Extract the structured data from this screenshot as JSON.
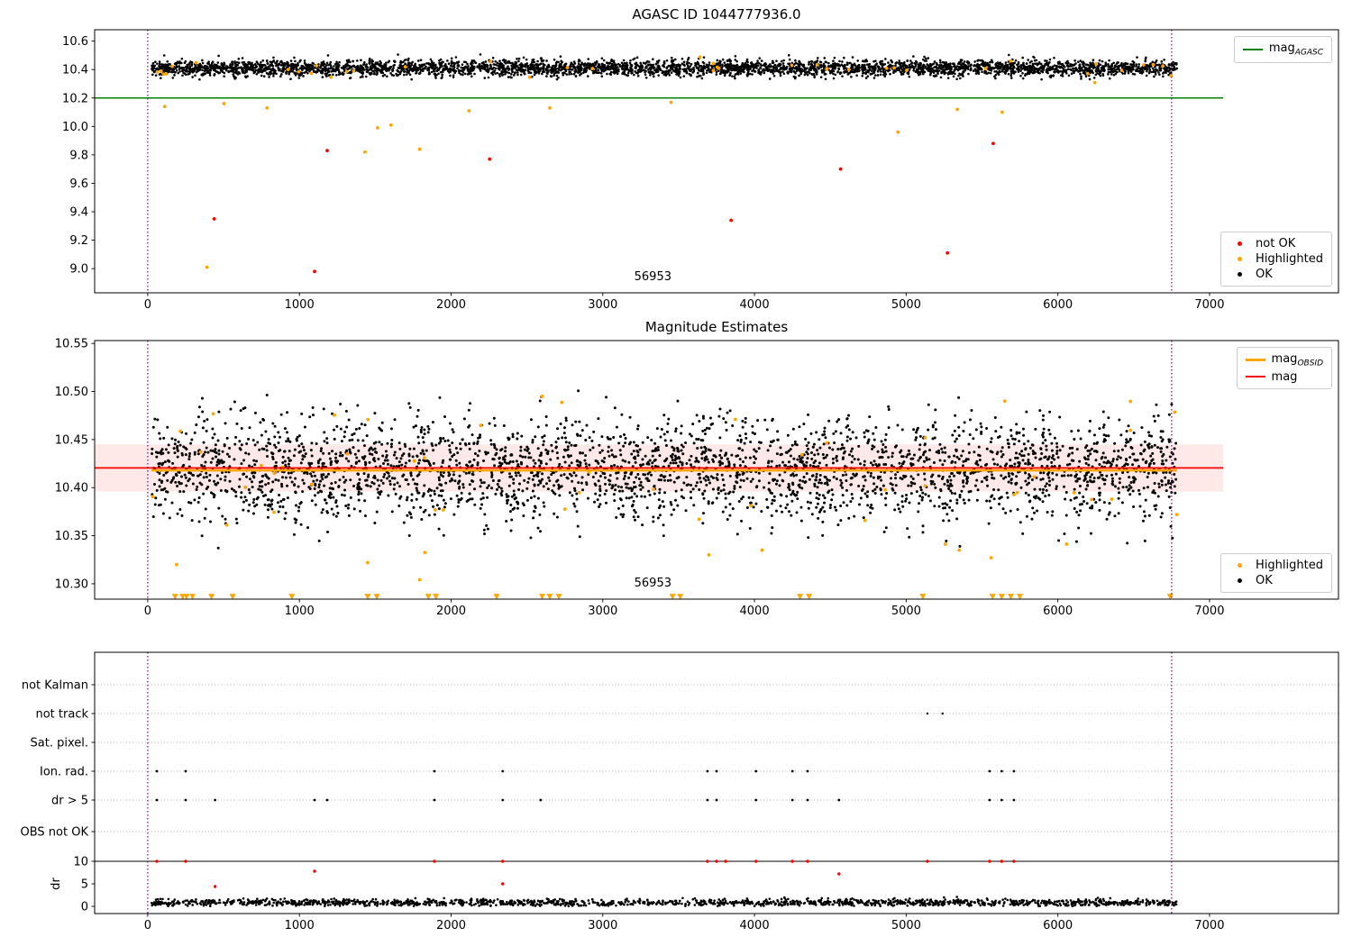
{
  "chart_data": [
    {
      "type": "scatter",
      "title": "AGASC ID 1044777936.0",
      "xlim": [
        -350,
        7850
      ],
      "ylim": [
        8.83,
        10.68
      ],
      "xticks": [
        0,
        1000,
        2000,
        3000,
        4000,
        5000,
        6000,
        7000
      ],
      "yticks": [
        9.0,
        9.2,
        9.4,
        9.6,
        9.8,
        10.0,
        10.2,
        10.4,
        10.6
      ],
      "ydecimals": 1,
      "vlines": [
        {
          "x": 0
        },
        {
          "x": 6750
        }
      ],
      "hlines": [
        {
          "y": 10.2,
          "color": "#008000",
          "x0": -350,
          "x1": 7090,
          "w": 1.6,
          "name": "mag_AGASC"
        }
      ],
      "series": [
        {
          "name": "OK",
          "color": "#000000",
          "marker": "dot",
          "size": 1.3,
          "random": {
            "seed": 101,
            "n": 4200,
            "x0": 25,
            "x1": 6785,
            "mean": 10.41,
            "std": 0.028,
            "min": 10.33,
            "max": 10.53
          }
        },
        {
          "name": "Highlighted",
          "color": "#ffa500",
          "marker": "dot",
          "size": 1.9,
          "random": {
            "seed": 7,
            "n": 40,
            "x0": 25,
            "x1": 6785,
            "mean": 10.41,
            "std": 0.05,
            "min": 10.28,
            "max": 10.52
          },
          "points": [
            [
              112,
              10.14
            ],
            [
              390,
              9.01
            ],
            [
              503,
              10.16
            ],
            [
              787,
              10.13
            ],
            [
              1432,
              9.82
            ],
            [
              1515,
              9.99
            ],
            [
              1604,
              10.01
            ],
            [
              1793,
              9.84
            ],
            [
              2118,
              10.11
            ],
            [
              2651,
              10.13
            ],
            [
              3450,
              10.17
            ],
            [
              4946,
              9.96
            ],
            [
              5337,
              10.12
            ],
            [
              5633,
              10.1
            ]
          ]
        },
        {
          "name": "not OK",
          "color": "#ff0000",
          "marker": "dot",
          "size": 1.9,
          "points": [
            [
              438,
              9.35
            ],
            [
              1100,
              8.98
            ],
            [
              1183,
              9.83
            ],
            [
              2254,
              9.77
            ],
            [
              3846,
              9.34
            ],
            [
              4568,
              9.7
            ],
            [
              5272,
              9.11
            ],
            [
              5574,
              9.88
            ]
          ]
        }
      ],
      "annotations": [
        {
          "text": "56953",
          "x": 3330
        }
      ],
      "legends": [
        {
          "pos": "top-right",
          "entries": [
            {
              "swatch": "line",
              "color": "#008000",
              "label": "mag",
              "sub": "AGASC"
            }
          ]
        },
        {
          "pos": "bottom-right",
          "entries": [
            {
              "swatch": "dot",
              "color": "#ff0000",
              "label": "not OK"
            },
            {
              "swatch": "dot",
              "color": "#ffa500",
              "label": "Highlighted"
            },
            {
              "swatch": "dot",
              "color": "#000000",
              "label": "OK"
            }
          ]
        }
      ]
    },
    {
      "type": "scatter",
      "title": "Magnitude Estimates",
      "xlim": [
        -350,
        7850
      ],
      "ylim": [
        10.284,
        10.553
      ],
      "xticks": [
        0,
        1000,
        2000,
        3000,
        4000,
        5000,
        6000,
        7000
      ],
      "yticks": [
        10.3,
        10.35,
        10.4,
        10.45,
        10.5,
        10.55
      ],
      "ydecimals": 2,
      "band": {
        "y0": 10.396,
        "y1": 10.445,
        "x0": -350,
        "x1": 7090,
        "color": "rgba(255,0,0,0.09)"
      },
      "vlines": [
        {
          "x": 0
        },
        {
          "x": 6750
        }
      ],
      "hlines": [
        {
          "y": 10.418,
          "color": "#ffa500",
          "x0": 25,
          "x1": 6785,
          "w": 2.6,
          "name": "mag_OBSID"
        },
        {
          "y": 10.4205,
          "color": "#ff0000",
          "x0": -350,
          "x1": 7090,
          "w": 1.8,
          "name": "mag"
        }
      ],
      "series": [
        {
          "name": "OK",
          "color": "#000000",
          "marker": "dot",
          "size": 1.5,
          "random": {
            "seed": 202,
            "n": 3200,
            "x0": 25,
            "x1": 6785,
            "mean": 10.419,
            "std": 0.027,
            "min": 10.328,
            "max": 10.503
          }
        },
        {
          "name": "Highlighted",
          "color": "#ffa500",
          "marker": "dot",
          "size": 1.9,
          "random": {
            "seed": 8,
            "n": 48,
            "x0": 25,
            "x1": 6785,
            "mean": 10.42,
            "std": 0.055,
            "min": 10.3,
            "max": 10.5
          },
          "points": [
            [
              190,
              10.32
            ],
            [
              1450,
              10.322
            ],
            [
              2600,
              10.495
            ],
            [
              3700,
              10.33
            ],
            [
              4050,
              10.335
            ],
            [
              5350,
              10.335
            ],
            [
              5650,
              10.49
            ]
          ]
        },
        {
          "name": "Highlighted clipped",
          "color": "#ffa500",
          "marker": "tri-down",
          "size": 3.5,
          "y": 10.2867,
          "xs": [
            180,
            230,
            255,
            295,
            420,
            560,
            950,
            1450,
            1510,
            1850,
            1900,
            2300,
            2600,
            2650,
            2710,
            3460,
            3510,
            4300,
            4360,
            5110,
            5570,
            5630,
            5690,
            5750,
            6740
          ]
        }
      ],
      "annotations": [
        {
          "text": "56953",
          "x": 3330
        }
      ],
      "legends": [
        {
          "pos": "top-right",
          "entries": [
            {
              "swatch": "line",
              "color": "#ffa500",
              "label": "mag",
              "sub": "OBSID",
              "thick": true
            },
            {
              "swatch": "line",
              "color": "#ff0000",
              "label": "mag"
            }
          ]
        },
        {
          "pos": "bottom-right",
          "entries": [
            {
              "swatch": "dot",
              "color": "#ffa500",
              "label": "Highlighted"
            },
            {
              "swatch": "dot",
              "color": "#000000",
              "label": "OK"
            }
          ]
        }
      ]
    },
    {
      "type": "scatter",
      "title": "",
      "xlim": [
        -350,
        7850
      ],
      "ylim": [
        -1.6,
        56.4
      ],
      "xticks": [
        0,
        1000,
        2000,
        3000,
        4000,
        5000,
        6000,
        7000
      ],
      "category_rows": [
        {
          "label": "not Kalman",
          "v": 49.2
        },
        {
          "label": "not track",
          "v": 42.8
        },
        {
          "label": "Sat. pixel.",
          "v": 36.4
        },
        {
          "label": "Ion. rad.",
          "v": 30.0
        },
        {
          "label": "dr > 5",
          "v": 23.6
        },
        {
          "label": "OBS not OK",
          "v": 16.6
        }
      ],
      "yticks_values": [
        {
          "v": 10,
          "label": "10"
        },
        {
          "v": 5,
          "label": "5"
        },
        {
          "v": 0,
          "label": "0"
        }
      ],
      "ylabel": "dr",
      "vlines": [
        {
          "x": 0
        },
        {
          "x": 6750
        }
      ],
      "hlines": [
        {
          "y": 10,
          "color": "#000000",
          "x0": -350,
          "x1": 7850,
          "w": 1,
          "under": true
        }
      ],
      "series": [
        {
          "name": "dr OK",
          "color": "#000000",
          "marker": "dot",
          "size": 1.3,
          "random": {
            "seed": 303,
            "n": 1600,
            "x0": 25,
            "x1": 6785,
            "mean": 0.8,
            "std": 0.4,
            "min": 0.05,
            "max": 2.4
          }
        },
        {
          "name": "flag not track",
          "color": "#000000",
          "marker": "dot",
          "size": 1.2,
          "y": 42.8,
          "xs": [
            5140,
            5240
          ]
        },
        {
          "name": "flag ion rad",
          "color": "#000000",
          "marker": "dot",
          "size": 1.4,
          "y": 30,
          "xs": [
            60,
            250,
            1890,
            2340,
            3690,
            3750,
            4010,
            4250,
            4350,
            5550,
            5630,
            5710
          ]
        },
        {
          "name": "flag dr gt 5",
          "color": "#000000",
          "marker": "dot",
          "size": 1.4,
          "y": 23.6,
          "xs": [
            60,
            250,
            444,
            1100,
            1183,
            1890,
            2340,
            2590,
            3690,
            3750,
            4010,
            4250,
            4350,
            4557,
            5550,
            5630,
            5710
          ]
        },
        {
          "name": "dr not OK clipped",
          "color": "#ff0000",
          "marker": "dot",
          "size": 1.7,
          "y": 10,
          "xs": [
            60,
            250,
            1890,
            2340,
            3690,
            3750,
            3810,
            4010,
            4250,
            4350,
            5140,
            5550,
            5630,
            5710
          ]
        },
        {
          "name": "dr not OK",
          "color": "#ff0000",
          "marker": "dot",
          "size": 1.7,
          "points": [
            [
              444,
              4.4
            ],
            [
              1100,
              7.8
            ],
            [
              2340,
              5.0
            ],
            [
              4557,
              7.2
            ]
          ]
        }
      ],
      "annotations": [],
      "legends": []
    }
  ],
  "colors": {
    "ok": "#000000",
    "highlighted": "#ffa500",
    "not_ok": "#ff0000",
    "mag_agasc_line": "#008000",
    "mag_line": "#ff0000",
    "mag_obsid_line": "#ffa500",
    "obsid_boundary_line": "#800080",
    "grid": "#b0b0b0"
  }
}
